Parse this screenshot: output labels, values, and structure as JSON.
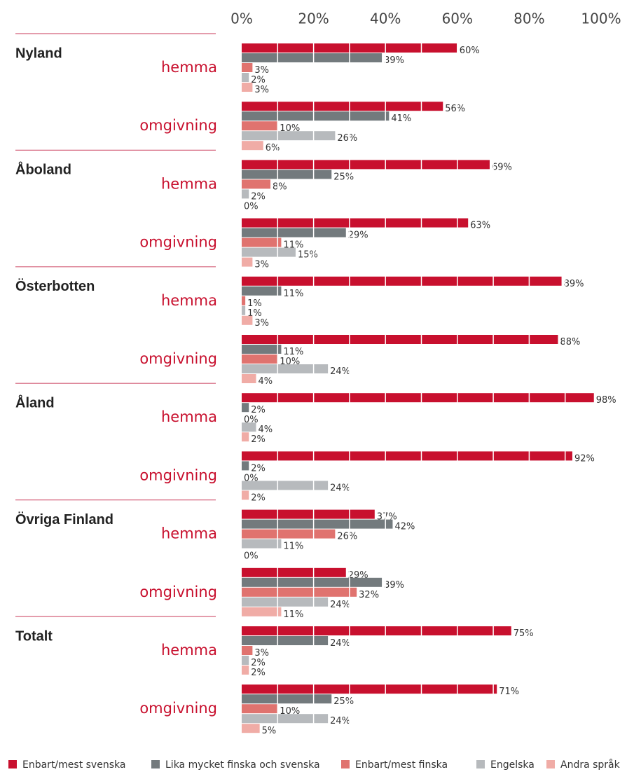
{
  "chart_data": {
    "type": "hbar",
    "groups": [
      "Nyland",
      "Åboland",
      "Österbotten",
      "Åland",
      "Övriga Finland",
      "Totalt"
    ],
    "categories": [
      "hemma",
      "omgivning",
      "hemma",
      "omgivning",
      "hemma",
      "omgivning",
      "hemma",
      "omgivning",
      "hemma",
      "omgivning",
      "hemma",
      "omgivning"
    ],
    "series": [
      {
        "name": "Enbart/mest svenska",
        "color": "#c8102e",
        "values": [
          60,
          56,
          69,
          63,
          89,
          88,
          98,
          92,
          37,
          29,
          75,
          71
        ],
        "value_labels": [
          "60%",
          "56%",
          "69%",
          "63%",
          "89%",
          "88%",
          "98%",
          "92%",
          "37%",
          "29%",
          "75%",
          "71%"
        ]
      },
      {
        "name": "Lika mycket finska och svenska",
        "color": "#737a7d",
        "values": [
          39,
          41,
          25,
          29,
          11,
          11,
          2,
          2,
          42,
          39,
          24,
          25
        ],
        "value_labels": [
          "39%",
          "41%",
          "25%",
          "29%",
          "11%",
          "11%",
          "2%",
          "2%",
          "42%",
          "39%",
          "24%",
          "25%"
        ]
      },
      {
        "name": "Enbart/mest finska",
        "color": "#e0736f",
        "values": [
          3,
          10,
          8,
          11,
          1,
          10,
          0,
          0,
          26,
          32,
          3,
          10
        ],
        "value_labels": [
          "3%",
          "10%",
          "8%",
          "11%",
          "1%",
          "10%",
          "0%",
          "0%",
          "26%",
          "32%",
          "3%",
          "10%"
        ]
      },
      {
        "name": "Engelska",
        "color": "#b7babd",
        "values": [
          2,
          26,
          2,
          15,
          1,
          24,
          4,
          24,
          11,
          24,
          2,
          24
        ],
        "value_labels": [
          "2%",
          "26%",
          "2%",
          "15%",
          "1%",
          "24%",
          "4%",
          "24%",
          "11%",
          "24%",
          "2%",
          "24%"
        ]
      },
      {
        "name": "Andra språk",
        "color": "#f0aca6",
        "values": [
          3,
          6,
          0,
          3,
          3,
          4,
          2,
          2,
          0,
          11,
          2,
          5
        ],
        "value_labels": [
          "3%",
          "6%",
          "0%",
          "3%",
          "3%",
          "4%",
          "2%",
          "2%",
          "0%",
          "11%",
          "2%",
          "5%"
        ]
      }
    ],
    "xlim": [
      0,
      100
    ],
    "xticks": [
      {
        "value": 0,
        "label": "0%"
      },
      {
        "value": 20,
        "label": "20%"
      },
      {
        "value": 40,
        "label": "40%"
      },
      {
        "value": 60,
        "label": "60%"
      },
      {
        "value": 80,
        "label": "80%"
      },
      {
        "value": 100,
        "label": "100%"
      }
    ],
    "grid_values": [
      10,
      20,
      30,
      40,
      50,
      60,
      70,
      80,
      90
    ],
    "grid_color": "#ffffff",
    "legend": "bottom-left"
  }
}
